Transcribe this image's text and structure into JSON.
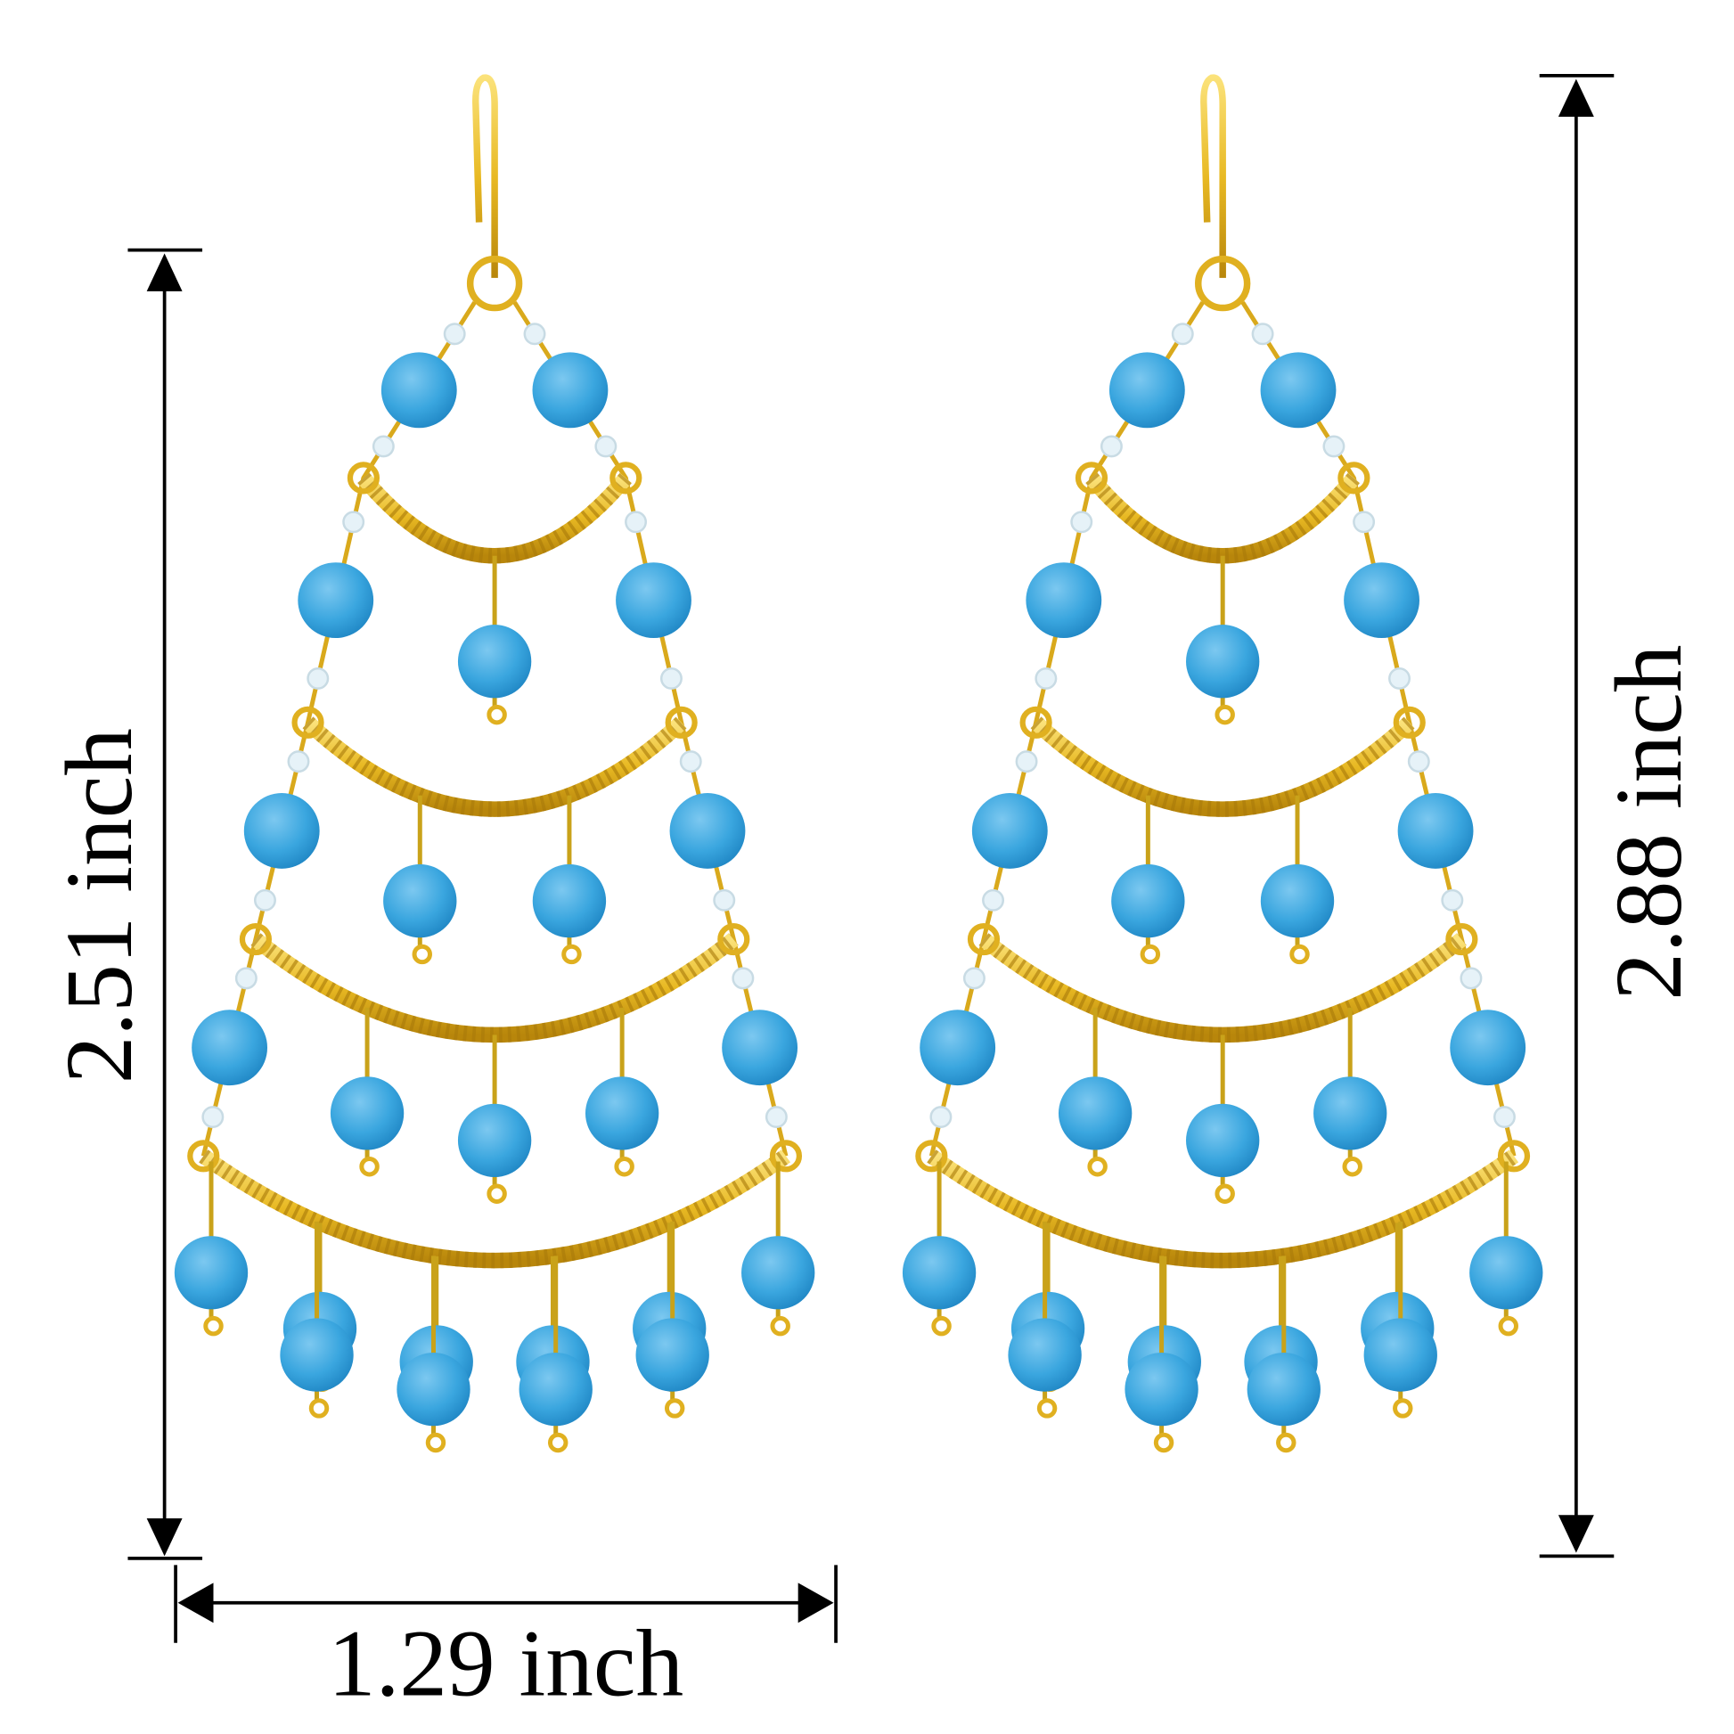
{
  "product": {
    "subject": "pair of gold chandelier earrings with blue faceted beads",
    "colors": {
      "bead": "#3aa6df",
      "bead_dark": "#1f86c4",
      "gold": "#e8b923",
      "gold_dark": "#b8860b",
      "seed_bead": "#e6f2f8",
      "dimension_lines": "#000000"
    }
  },
  "dimensions": {
    "width_label": "1.29 inch",
    "left_height_label": "2.51 inch",
    "right_height_label": "2.88 inch"
  }
}
